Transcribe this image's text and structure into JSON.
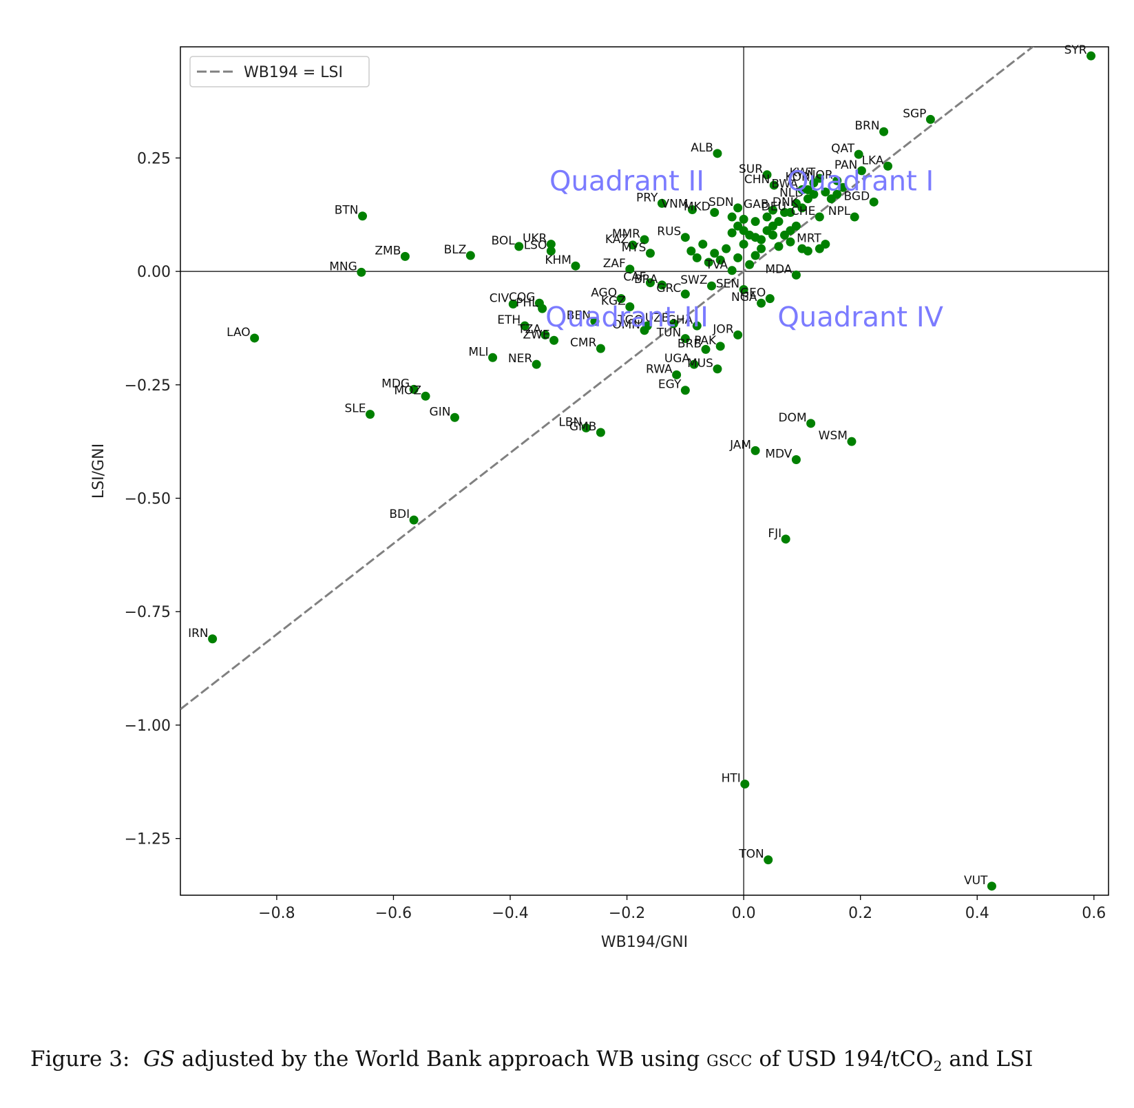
{
  "caption": {
    "prefix": "Figure 3:",
    "gs": "GS",
    "middle": "adjusted by the World Bank approach WB using",
    "gscc": "gscc",
    "of_usd": "of USD 194/tCO",
    "sub": "2",
    "suffix": "and LSI"
  },
  "chart_data": {
    "type": "scatter",
    "xlabel": "WB194/GNI",
    "ylabel": "LSI/GNI",
    "xlim": [
      -0.965,
      0.625
    ],
    "ylim": [
      -1.375,
      0.495
    ],
    "xticks": [
      -0.8,
      -0.6,
      -0.4,
      -0.2,
      0.0,
      0.2,
      0.4,
      0.6
    ],
    "xtick_labels": [
      "−0.8",
      "−0.6",
      "−0.4",
      "−0.2",
      "0.0",
      "0.2",
      "0.4",
      "0.6"
    ],
    "yticks": [
      0.25,
      0.0,
      -0.25,
      -0.5,
      -0.75,
      -1.0,
      -1.25
    ],
    "ytick_labels": [
      "0.25",
      "0.00",
      "−0.25",
      "−0.50",
      "−0.75",
      "−1.00",
      "−1.25"
    ],
    "grid": false,
    "legend": {
      "location": "top-left",
      "entries": [
        "WB194 = LSI"
      ]
    },
    "reference_line": {
      "name": "WB194 = LSI",
      "style": "dashed",
      "color": "#808080"
    },
    "point_color": "#008000",
    "quadrant_label_color": "#7b7bff",
    "quadrant_labels": [
      {
        "text": "Quadrant I",
        "x": 0.2,
        "y": 0.2
      },
      {
        "text": "Quadrant II",
        "x": -0.2,
        "y": 0.2
      },
      {
        "text": "Quadrant III",
        "x": -0.2,
        "y": -0.1
      },
      {
        "text": "Quadrant IV",
        "x": 0.2,
        "y": -0.1
      }
    ],
    "points": [
      {
        "label": "SYR",
        "x": 0.595,
        "y": 0.475
      },
      {
        "label": "SGP",
        "x": 0.32,
        "y": 0.335
      },
      {
        "label": "BRN",
        "x": 0.24,
        "y": 0.308
      },
      {
        "label": "QAT",
        "x": 0.197,
        "y": 0.258
      },
      {
        "label": "LKA",
        "x": 0.247,
        "y": 0.232
      },
      {
        "label": "PAN",
        "x": 0.202,
        "y": 0.222
      },
      {
        "label": "BGD",
        "x": 0.223,
        "y": 0.153
      },
      {
        "label": "NPL",
        "x": 0.19,
        "y": 0.12
      },
      {
        "label": "ALB",
        "x": -0.045,
        "y": 0.26
      },
      {
        "label": "SUR",
        "x": 0.04,
        "y": 0.213
      },
      {
        "label": "CHN",
        "x": 0.052,
        "y": 0.19
      },
      {
        "label": "KWT",
        "x": 0.13,
        "y": 0.205
      },
      {
        "label": "KOR",
        "x": 0.12,
        "y": 0.195
      },
      {
        "label": "NOR",
        "x": 0.16,
        "y": 0.2
      },
      {
        "label": "BWA",
        "x": 0.1,
        "y": 0.18
      },
      {
        "label": "NLD",
        "x": 0.11,
        "y": 0.16
      },
      {
        "label": "DNK",
        "x": 0.1,
        "y": 0.14
      },
      {
        "label": "SDN",
        "x": -0.01,
        "y": 0.14
      },
      {
        "label": "GAB",
        "x": 0.05,
        "y": 0.135
      },
      {
        "label": "PRY",
        "x": -0.14,
        "y": 0.15
      },
      {
        "label": "VNM",
        "x": -0.088,
        "y": 0.136
      },
      {
        "label": "MKD",
        "x": -0.05,
        "y": 0.13
      },
      {
        "label": "DEU",
        "x": 0.08,
        "y": 0.13
      },
      {
        "label": "CHE",
        "x": 0.13,
        "y": 0.12
      },
      {
        "label": "BTN",
        "x": -0.653,
        "y": 0.122
      },
      {
        "label": "MRT",
        "x": 0.14,
        "y": 0.06
      },
      {
        "label": "MMR",
        "x": -0.17,
        "y": 0.07
      },
      {
        "label": "RUS",
        "x": -0.1,
        "y": 0.075
      },
      {
        "label": "KAZ",
        "x": -0.19,
        "y": 0.058
      },
      {
        "label": "MYS",
        "x": -0.16,
        "y": 0.04
      },
      {
        "label": "UKR",
        "x": -0.33,
        "y": 0.06
      },
      {
        "label": "BOL",
        "x": -0.385,
        "y": 0.055
      },
      {
        "label": "LSO",
        "x": -0.33,
        "y": 0.045
      },
      {
        "label": "ZMB",
        "x": -0.58,
        "y": 0.033
      },
      {
        "label": "BLZ",
        "x": -0.468,
        "y": 0.035
      },
      {
        "label": "KHM",
        "x": -0.288,
        "y": 0.012
      },
      {
        "label": "ZAF",
        "x": -0.195,
        "y": 0.005
      },
      {
        "label": "TVA",
        "x": -0.02,
        "y": 0.002
      },
      {
        "label": "MNG",
        "x": -0.655,
        "y": -0.002
      },
      {
        "label": "MDA",
        "x": 0.09,
        "y": -0.008
      },
      {
        "label": "LAO",
        "x": -0.838,
        "y": -0.147
      },
      {
        "label": "SWZ",
        "x": -0.055,
        "y": -0.032
      },
      {
        "label": "SEN",
        "x": 0.0,
        "y": -0.04
      },
      {
        "label": "CAF",
        "x": -0.16,
        "y": -0.025
      },
      {
        "label": "BRA",
        "x": -0.14,
        "y": -0.03
      },
      {
        "label": "GRC",
        "x": -0.1,
        "y": -0.05
      },
      {
        "label": "NGA",
        "x": 0.03,
        "y": -0.07
      },
      {
        "label": "GEO",
        "x": 0.045,
        "y": -0.06
      },
      {
        "label": "AGO",
        "x": -0.21,
        "y": -0.06
      },
      {
        "label": "KGZ",
        "x": -0.195,
        "y": -0.078
      },
      {
        "label": "CIV",
        "x": -0.395,
        "y": -0.072
      },
      {
        "label": "COG",
        "x": -0.35,
        "y": -0.07
      },
      {
        "label": "PHL",
        "x": -0.345,
        "y": -0.082
      },
      {
        "label": "ETH",
        "x": -0.375,
        "y": -0.12
      },
      {
        "label": "BEN",
        "x": -0.255,
        "y": -0.11
      },
      {
        "label": "TGO",
        "x": -0.165,
        "y": -0.12
      },
      {
        "label": "UZB",
        "x": -0.12,
        "y": -0.115
      },
      {
        "label": "GHA",
        "x": -0.08,
        "y": -0.12
      },
      {
        "label": "OMN",
        "x": -0.17,
        "y": -0.13
      },
      {
        "label": "TUN",
        "x": -0.1,
        "y": -0.148
      },
      {
        "label": "JOR",
        "x": -0.01,
        "y": -0.14
      },
      {
        "label": "TZA",
        "x": -0.34,
        "y": -0.14
      },
      {
        "label": "ZWE",
        "x": -0.325,
        "y": -0.152
      },
      {
        "label": "MLI",
        "x": -0.43,
        "y": -0.19
      },
      {
        "label": "NER",
        "x": -0.355,
        "y": -0.205
      },
      {
        "label": "CMR",
        "x": -0.245,
        "y": -0.17
      },
      {
        "label": "BRB",
        "x": -0.065,
        "y": -0.172
      },
      {
        "label": "PAK",
        "x": -0.04,
        "y": -0.165
      },
      {
        "label": "UGA",
        "x": -0.085,
        "y": -0.205
      },
      {
        "label": "MUS",
        "x": -0.045,
        "y": -0.215
      },
      {
        "label": "RWA",
        "x": -0.115,
        "y": -0.228
      },
      {
        "label": "EGY",
        "x": -0.1,
        "y": -0.262
      },
      {
        "label": "MDG",
        "x": -0.565,
        "y": -0.26
      },
      {
        "label": "MOZ",
        "x": -0.545,
        "y": -0.275
      },
      {
        "label": "SLE",
        "x": -0.64,
        "y": -0.315
      },
      {
        "label": "GIN",
        "x": -0.495,
        "y": -0.322
      },
      {
        "label": "LBN",
        "x": -0.27,
        "y": -0.345
      },
      {
        "label": "GMB",
        "x": -0.245,
        "y": -0.355
      },
      {
        "label": "DOM",
        "x": 0.115,
        "y": -0.335
      },
      {
        "label": "WSM",
        "x": 0.185,
        "y": -0.375
      },
      {
        "label": "JAM",
        "x": 0.02,
        "y": -0.395
      },
      {
        "label": "MDV",
        "x": 0.09,
        "y": -0.415
      },
      {
        "label": "BDI",
        "x": -0.565,
        "y": -0.548
      },
      {
        "label": "FJI",
        "x": 0.072,
        "y": -0.59
      },
      {
        "label": "IRN",
        "x": -0.91,
        "y": -0.81
      },
      {
        "label": "HTI",
        "x": 0.002,
        "y": -1.13
      },
      {
        "label": "TON",
        "x": 0.042,
        "y": -1.297
      },
      {
        "label": "VUT",
        "x": 0.425,
        "y": -1.355
      }
    ],
    "unlabeled_points": [
      {
        "x": -0.01,
        "y": 0.1
      },
      {
        "x": 0.0,
        "y": 0.09
      },
      {
        "x": -0.02,
        "y": 0.085
      },
      {
        "x": 0.01,
        "y": 0.08
      },
      {
        "x": 0.02,
        "y": 0.075
      },
      {
        "x": 0.03,
        "y": 0.07
      },
      {
        "x": 0.04,
        "y": 0.09
      },
      {
        "x": 0.05,
        "y": 0.1
      },
      {
        "x": 0.06,
        "y": 0.11
      },
      {
        "x": 0.07,
        "y": 0.08
      },
      {
        "x": 0.08,
        "y": 0.09
      },
      {
        "x": 0.09,
        "y": 0.1
      },
      {
        "x": 0.1,
        "y": 0.05
      },
      {
        "x": 0.11,
        "y": 0.045
      },
      {
        "x": 0.13,
        "y": 0.05
      },
      {
        "x": 0.06,
        "y": 0.055
      },
      {
        "x": 0.03,
        "y": 0.05
      },
      {
        "x": 0.0,
        "y": 0.06
      },
      {
        "x": -0.03,
        "y": 0.05
      },
      {
        "x": -0.05,
        "y": 0.04
      },
      {
        "x": -0.08,
        "y": 0.03
      },
      {
        "x": -0.06,
        "y": 0.02
      },
      {
        "x": -0.04,
        "y": 0.025
      },
      {
        "x": -0.01,
        "y": 0.03
      },
      {
        "x": 0.02,
        "y": 0.035
      },
      {
        "x": 0.04,
        "y": 0.12
      },
      {
        "x": 0.07,
        "y": 0.13
      },
      {
        "x": 0.09,
        "y": 0.15
      },
      {
        "x": 0.12,
        "y": 0.17
      },
      {
        "x": 0.14,
        "y": 0.175
      },
      {
        "x": 0.15,
        "y": 0.16
      },
      {
        "x": 0.17,
        "y": 0.185
      },
      {
        "x": 0.11,
        "y": 0.18
      },
      {
        "x": 0.16,
        "y": 0.17
      },
      {
        "x": -0.02,
        "y": 0.12
      },
      {
        "x": 0.0,
        "y": 0.115
      },
      {
        "x": 0.02,
        "y": 0.11
      },
      {
        "x": 0.05,
        "y": 0.08
      },
      {
        "x": 0.08,
        "y": 0.065
      },
      {
        "x": -0.07,
        "y": 0.06
      },
      {
        "x": -0.09,
        "y": 0.045
      },
      {
        "x": 0.01,
        "y": 0.015
      }
    ]
  }
}
